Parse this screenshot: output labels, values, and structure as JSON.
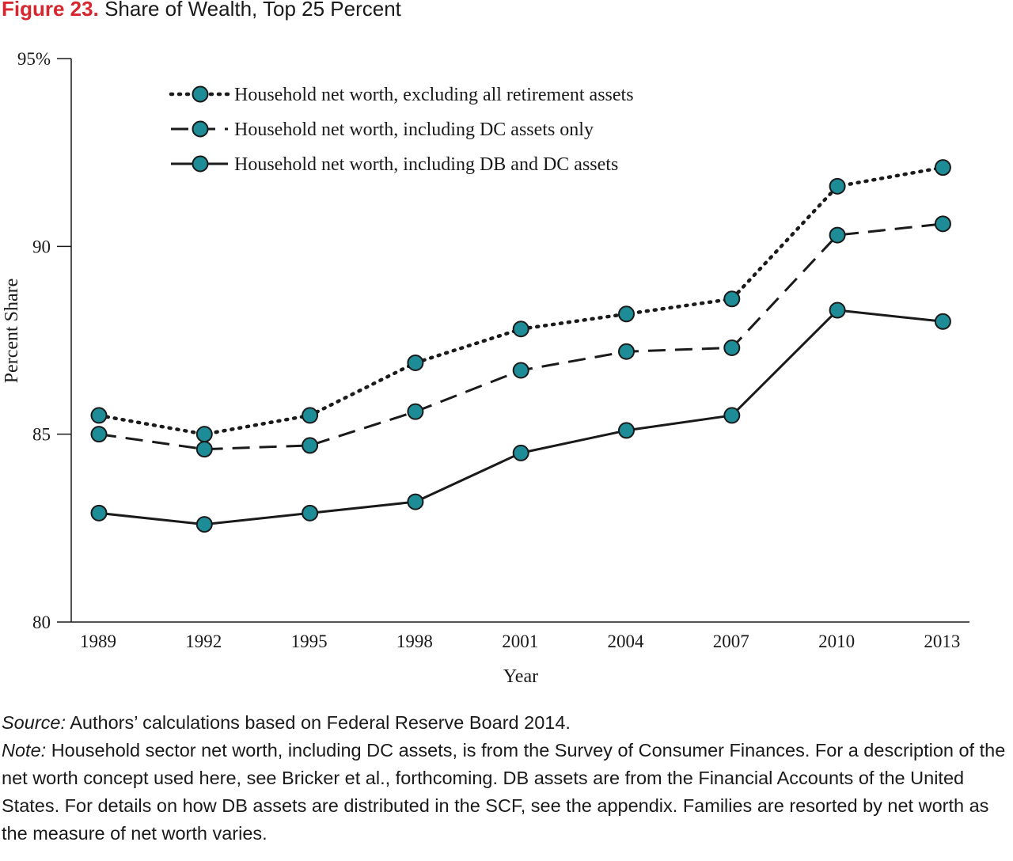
{
  "figure": {
    "number": "Figure 23.",
    "title": "Share of Wealth, Top 25 Percent"
  },
  "chart_data": {
    "type": "line",
    "xlabel": "Year",
    "ylabel": "Percent Share",
    "categories": [
      "1989",
      "1992",
      "1995",
      "1998",
      "2001",
      "2004",
      "2007",
      "2010",
      "2013"
    ],
    "ylim": [
      80,
      95
    ],
    "yticks": [
      80,
      85,
      90,
      95
    ],
    "ytick_labels": [
      "80",
      "85",
      "90",
      "95%"
    ],
    "grid": false,
    "legend_position": "top-left",
    "marker_color": "#1e8c96",
    "series": [
      {
        "name": "Household net worth, excluding all retirement assets",
        "style": "dotted",
        "values": [
          85.5,
          85.0,
          85.5,
          86.9,
          87.8,
          88.2,
          88.6,
          91.6,
          92.1
        ]
      },
      {
        "name": "Household net worth, including DC assets only",
        "style": "dashed",
        "values": [
          85.0,
          84.6,
          84.7,
          85.6,
          86.7,
          87.2,
          87.3,
          90.3,
          90.6
        ]
      },
      {
        "name": "Household net worth, including DB and DC assets",
        "style": "solid",
        "values": [
          82.9,
          82.6,
          82.9,
          83.2,
          84.5,
          85.1,
          85.5,
          88.3,
          88.0
        ]
      }
    ]
  },
  "source": {
    "label": "Source:",
    "text": " Authors’ calculations based on Federal Reserve Board 2014."
  },
  "note": {
    "label": "Note:",
    "text": " Household sector net worth, including DC assets, is from the Survey of Consumer Finances. For a description of the net worth concept used here, see Bricker et al., forthcoming. DB assets are from the Financial Accounts of the United States. For details on how DB assets are distributed in the SCF, see the appendix.  Families are resorted by net worth as the measure of net worth varies."
  }
}
